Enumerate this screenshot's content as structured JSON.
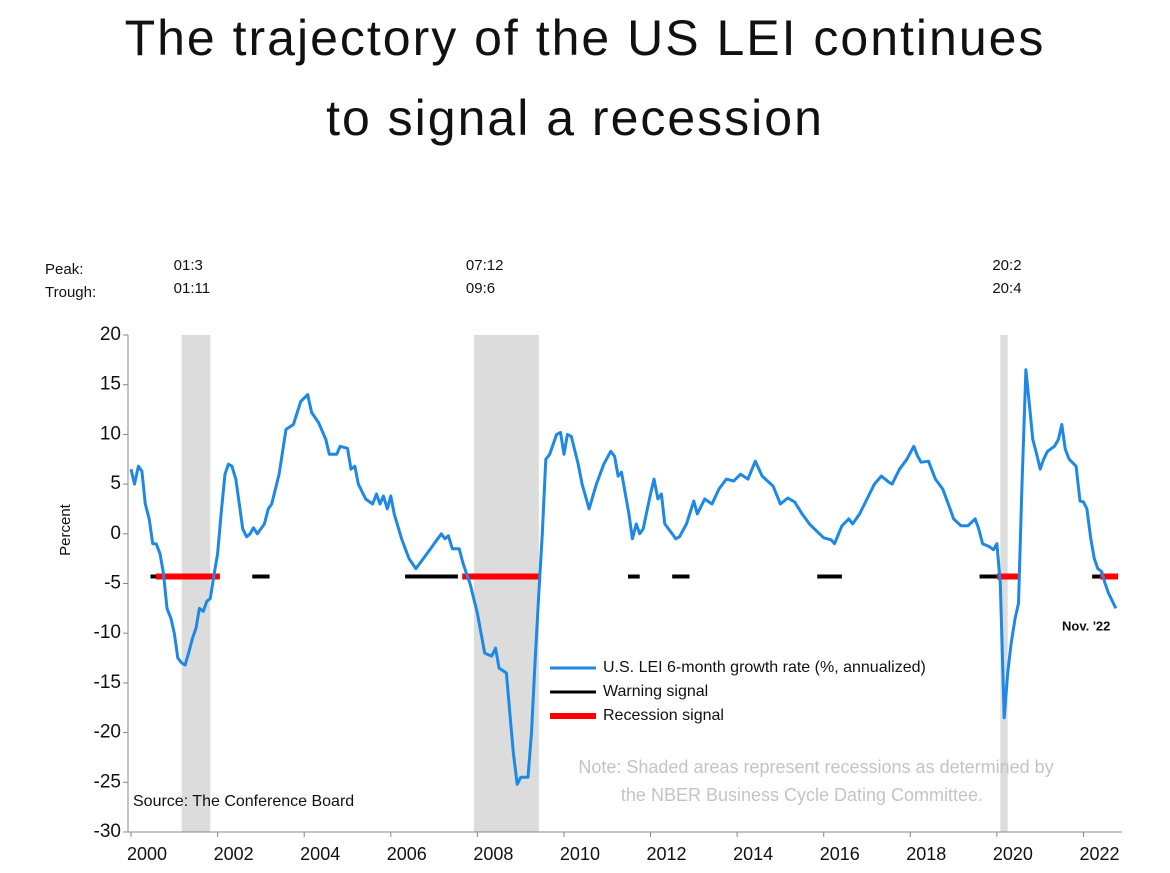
{
  "chart_data": {
    "type": "line",
    "title": [
      "The trajectory of the US LEI continues",
      "to signal a recession"
    ],
    "ylabel": "Percent",
    "xlim": [
      1999.93,
      2022.89
    ],
    "xticks": [
      2000,
      2002,
      2004,
      2006,
      2008,
      2010,
      2012,
      2014,
      2016,
      2018,
      2020,
      2022
    ],
    "ylim": [
      -30,
      20
    ],
    "yticks": [
      -30,
      -25,
      -20,
      -15,
      -10,
      -5,
      0,
      5,
      10,
      15,
      20
    ],
    "peak_label": "Peak:",
    "trough_label": "Trough:",
    "recessions": [
      {
        "peak": "01:3",
        "trough": "01:11",
        "start": 2001.17,
        "end": 2001.83
      },
      {
        "peak": "07:12",
        "trough": "09:6",
        "start": 2007.92,
        "end": 2009.42
      },
      {
        "peak": "20:2",
        "trough": "20:4",
        "start": 2020.08,
        "end": 2020.25
      }
    ],
    "recession_color": "#dcdcdc",
    "series": [
      {
        "name": "U.S. LEI 6-month growth rate (%, annualized)",
        "color": "#1e88e5",
        "x": [
          2000.0,
          2000.08,
          2000.17,
          2000.25,
          2000.33,
          2000.42,
          2000.5,
          2000.58,
          2000.67,
          2000.75,
          2000.83,
          2000.92,
          2001.0,
          2001.08,
          2001.17,
          2001.25,
          2001.33,
          2001.42,
          2001.5,
          2001.58,
          2001.67,
          2001.75,
          2001.83,
          2001.92,
          2002.0,
          2002.08,
          2002.17,
          2002.25,
          2002.33,
          2002.42,
          2002.5,
          2002.58,
          2002.67,
          2002.75,
          2002.83,
          2002.92,
          2003.0,
          2003.08,
          2003.17,
          2003.25,
          2003.42,
          2003.58,
          2003.75,
          2003.92,
          2004.08,
          2004.17,
          2004.33,
          2004.5,
          2004.58,
          2004.75,
          2004.83,
          2005.0,
          2005.08,
          2005.17,
          2005.25,
          2005.42,
          2005.58,
          2005.67,
          2005.75,
          2005.83,
          2005.92,
          2006.0,
          2006.08,
          2006.25,
          2006.42,
          2006.58,
          2006.75,
          2006.92,
          2007.0,
          2007.17,
          2007.25,
          2007.33,
          2007.42,
          2007.58,
          2007.67,
          2007.83,
          2008.0,
          2008.17,
          2008.33,
          2008.42,
          2008.5,
          2008.67,
          2008.75,
          2008.83,
          2008.92,
          2009.0,
          2009.17,
          2009.25,
          2009.33,
          2009.42,
          2009.5,
          2009.58,
          2009.67,
          2009.83,
          2009.92,
          2010.0,
          2010.08,
          2010.17,
          2010.33,
          2010.42,
          2010.58,
          2010.75,
          2010.92,
          2011.08,
          2011.17,
          2011.25,
          2011.33,
          2011.5,
          2011.58,
          2011.67,
          2011.75,
          2011.83,
          2012.0,
          2012.08,
          2012.17,
          2012.25,
          2012.33,
          2012.5,
          2012.58,
          2012.67,
          2012.83,
          2013.0,
          2013.08,
          2013.25,
          2013.42,
          2013.58,
          2013.75,
          2013.92,
          2014.08,
          2014.25,
          2014.42,
          2014.58,
          2014.83,
          2015.0,
          2015.17,
          2015.33,
          2015.5,
          2015.67,
          2015.83,
          2016.0,
          2016.17,
          2016.25,
          2016.42,
          2016.58,
          2016.67,
          2016.83,
          2017.0,
          2017.17,
          2017.33,
          2017.5,
          2017.58,
          2017.75,
          2017.92,
          2018.08,
          2018.17,
          2018.25,
          2018.42,
          2018.58,
          2018.75,
          2018.92,
          2019.0,
          2019.17,
          2019.33,
          2019.5,
          2019.58,
          2019.67,
          2019.83,
          2019.92,
          2020.0,
          2020.08,
          2020.17,
          2020.25,
          2020.33,
          2020.42,
          2020.5,
          2020.58,
          2020.67,
          2020.75,
          2020.83,
          2020.92,
          2021.0,
          2021.08,
          2021.17,
          2021.33,
          2021.42,
          2021.5,
          2021.58,
          2021.67,
          2021.83,
          2021.92,
          2022.0,
          2022.08,
          2022.17,
          2022.25,
          2022.33,
          2022.42,
          2022.5,
          2022.58,
          2022.75
        ],
        "values": [
          6.5,
          5,
          6.8,
          6.3,
          3,
          1.5,
          -1,
          -1,
          -2,
          -4,
          -7.5,
          -8.5,
          -10,
          -12.5,
          -13,
          -13.2,
          -12,
          -10.5,
          -9.5,
          -7.5,
          -7.8,
          -6.8,
          -6.5,
          -4,
          -2,
          2,
          6,
          7,
          6.8,
          5.5,
          3,
          0.5,
          -0.3,
          0,
          0.6,
          0,
          0.5,
          1,
          2.5,
          3,
          6,
          10.5,
          11,
          13.3,
          14,
          12.2,
          11.2,
          9.5,
          8,
          8,
          8.8,
          8.6,
          6.5,
          6.8,
          5,
          3.5,
          3,
          4,
          3,
          3.8,
          2.5,
          3.8,
          2,
          -0.5,
          -2.5,
          -3.5,
          -2.5,
          -1.5,
          -1,
          0,
          -0.5,
          -0.2,
          -1.5,
          -1.5,
          -3,
          -5,
          -8,
          -12,
          -12.3,
          -11.5,
          -13.5,
          -14,
          -18,
          -22,
          -25.2,
          -24.5,
          -24.5,
          -20,
          -13,
          -6,
          0,
          7.5,
          8,
          10,
          10.2,
          8,
          10,
          9.8,
          7,
          5,
          2.5,
          5,
          7,
          8.3,
          7.8,
          5.8,
          6.2,
          2,
          -0.5,
          1,
          0,
          0.5,
          4,
          5.5,
          3.5,
          4,
          1,
          0,
          -0.5,
          -0.3,
          1,
          3.3,
          2,
          3.5,
          3,
          4.5,
          5.5,
          5.3,
          6,
          5.5,
          7.3,
          5.8,
          4.8,
          3,
          3.6,
          3.2,
          2,
          1,
          0.3,
          -0.4,
          -0.6,
          -1,
          0.8,
          1.5,
          1,
          2,
          3.5,
          5,
          5.8,
          5.2,
          5,
          6.5,
          7.5,
          8.8,
          7.8,
          7.2,
          7.3,
          5.5,
          4.5,
          2.5,
          1.5,
          0.8,
          0.8,
          1.5,
          0.5,
          -1,
          -1.3,
          -1.6,
          -1,
          -5,
          -18.5,
          -14,
          -11,
          -8.5,
          -7,
          5,
          16.5,
          13,
          9.5,
          8,
          6.5,
          7.5,
          8.3,
          8.8,
          9.5,
          11,
          8.5,
          7.5,
          6.8,
          3.3,
          3.2,
          2.5,
          -0.5,
          -2.5,
          -3.5,
          -3.8,
          -5,
          -6,
          -7.5
        ]
      },
      {
        "name": "Warning signal",
        "color": "#000000",
        "level": -4.3,
        "segments": [
          [
            2000.45,
            2002.05
          ],
          [
            2002.8,
            2003.2
          ],
          [
            2006.33,
            2007.55
          ],
          [
            2011.48,
            2011.75
          ],
          [
            2012.5,
            2012.9
          ],
          [
            2015.85,
            2016.42
          ],
          [
            2019.6,
            2020.0
          ],
          [
            2022.2,
            2022.38
          ]
        ]
      },
      {
        "name": "Recession signal",
        "color": "#ff0000",
        "level": -4.3,
        "segments": [
          [
            2000.58,
            2002.05
          ],
          [
            2007.65,
            2009.45
          ],
          [
            2020.0,
            2020.53
          ],
          [
            2022.38,
            2022.8
          ]
        ]
      }
    ],
    "annotation": "Nov. '22",
    "note": [
      "Note: Shaded areas represent recessions as determined by",
      "the NBER Business Cycle Dating Committee."
    ],
    "source": "Source: The Conference Board"
  }
}
